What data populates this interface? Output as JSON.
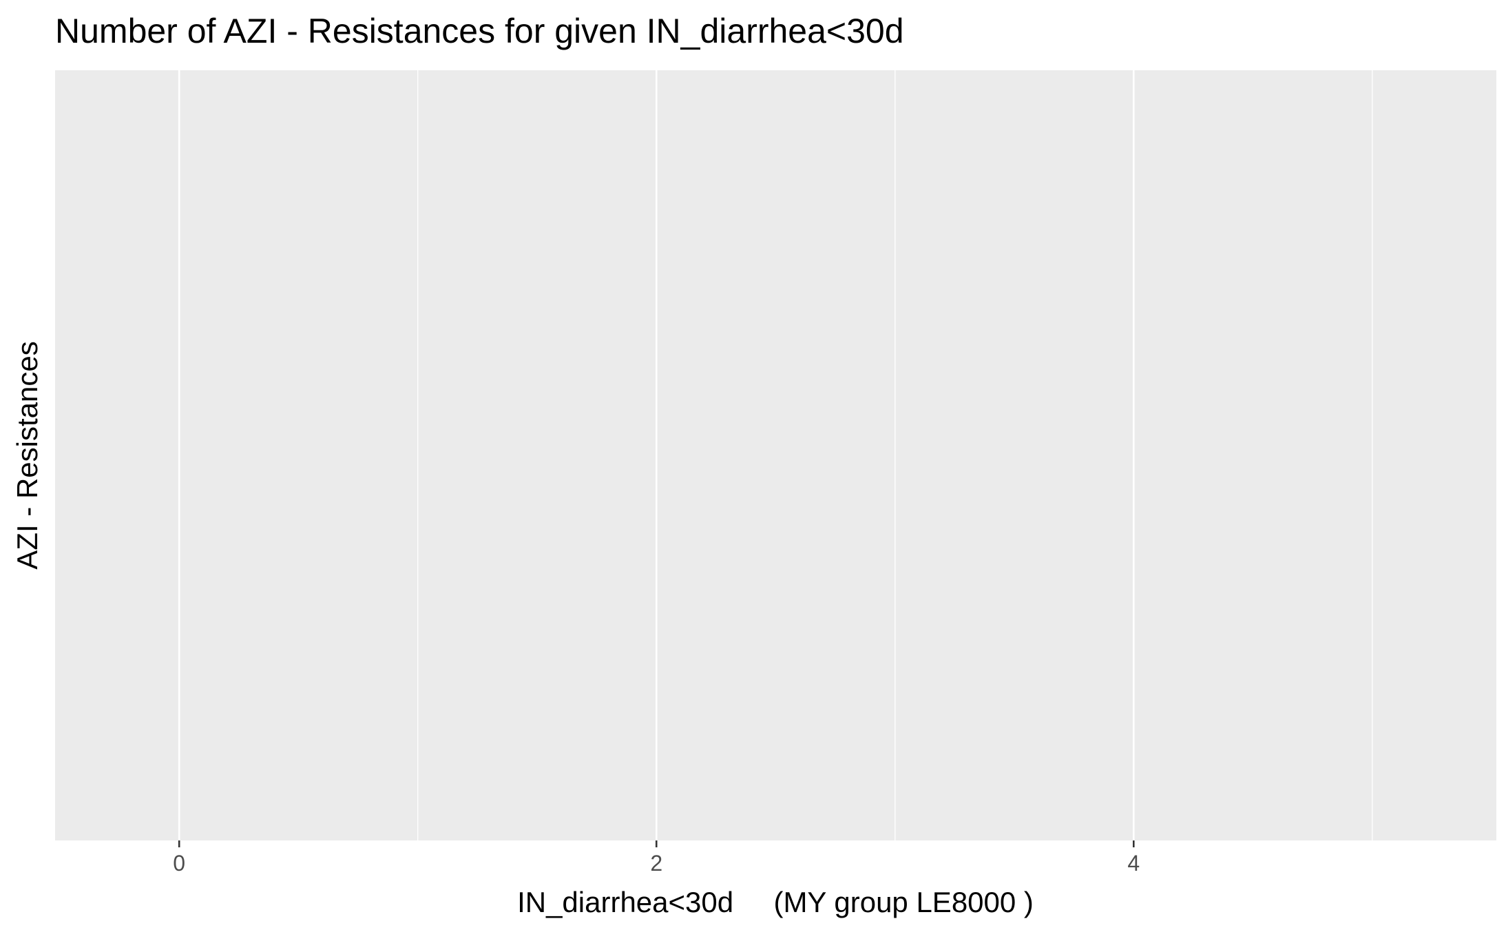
{
  "chart_data": {
    "type": "bar",
    "title": "Number of AZI - Resistances for given IN_diarrhea<30d",
    "xlabel": "IN_diarrhea<30d     (MY group LE8000 )",
    "ylabel": "AZI - Resistances",
    "xlim": [
      -0.52,
      5.52
    ],
    "x_ticks": [
      0,
      2,
      4
    ],
    "x_tick_labels": [
      "0",
      "2",
      "4"
    ],
    "x_minor_gridlines": [
      1,
      3,
      5
    ],
    "grid": true,
    "panel_background": "#ebebeb",
    "gridline_color": "#ffffff",
    "categories": [],
    "values": []
  }
}
